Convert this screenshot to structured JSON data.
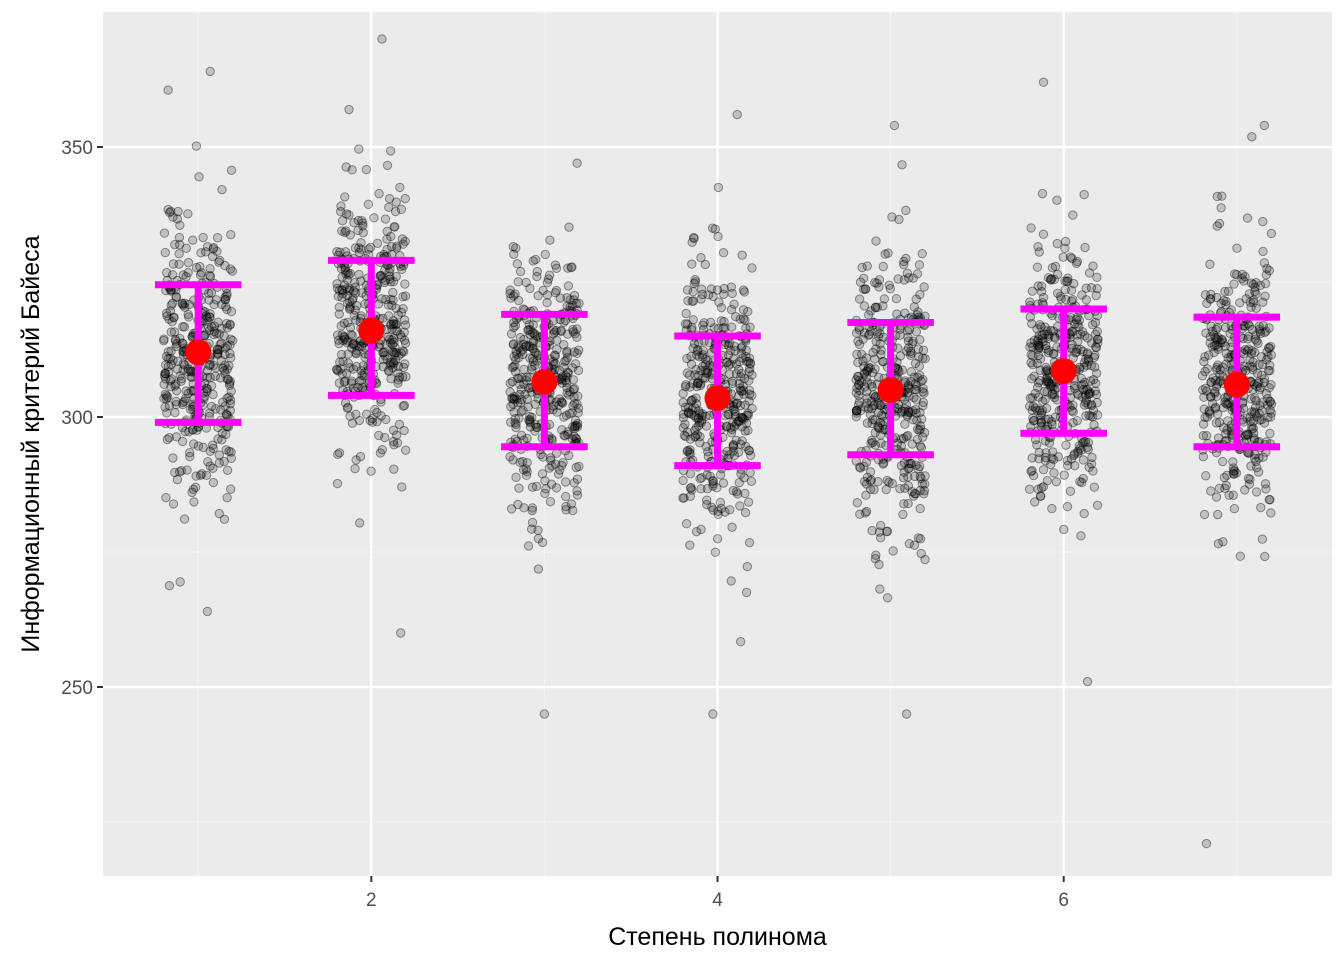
{
  "colors": {
    "panel_background": "#EBEBEB",
    "grid_major": "#FFFFFF",
    "grid_minor": "#F5F5F5",
    "points": "#000000",
    "mean_marker": "#FF0000",
    "error_bar": "#FF00FF"
  },
  "chart_data": {
    "type": "scatter",
    "subtype": "jittered strip plot with mean and error bars",
    "title": "",
    "xlabel": "Степень полинома",
    "ylabel": "Информационный критерий Байеса",
    "xlim": [
      0.45,
      7.55
    ],
    "ylim": [
      215,
      375
    ],
    "x_ticks": [
      2,
      4,
      6
    ],
    "x_tick_labels": [
      "2",
      "4",
      "6"
    ],
    "y_ticks": [
      250,
      300,
      350
    ],
    "y_tick_labels": [
      "250",
      "300",
      "350"
    ],
    "grid": true,
    "legend": "none",
    "groups": [
      {
        "x": 1,
        "mean": 312,
        "lower": 299,
        "upper": 324.5,
        "min": 264,
        "max": 364,
        "n_points": 400
      },
      {
        "x": 2,
        "mean": 316,
        "lower": 304,
        "upper": 329,
        "min": 260,
        "max": 370,
        "n_points": 400
      },
      {
        "x": 3,
        "mean": 306.5,
        "lower": 294.5,
        "upper": 319,
        "min": 245,
        "max": 347,
        "n_points": 400
      },
      {
        "x": 4,
        "mean": 303.5,
        "lower": 291,
        "upper": 315,
        "min": 245,
        "max": 356,
        "n_points": 400
      },
      {
        "x": 5,
        "mean": 305,
        "lower": 293,
        "upper": 317.5,
        "min": 245,
        "max": 354,
        "n_points": 400
      },
      {
        "x": 6,
        "mean": 308.5,
        "lower": 297,
        "upper": 320,
        "min": 251,
        "max": 362,
        "n_points": 400
      },
      {
        "x": 7,
        "mean": 306,
        "lower": 294.5,
        "upper": 318.5,
        "min": 221,
        "max": 354,
        "n_points": 400
      }
    ]
  }
}
